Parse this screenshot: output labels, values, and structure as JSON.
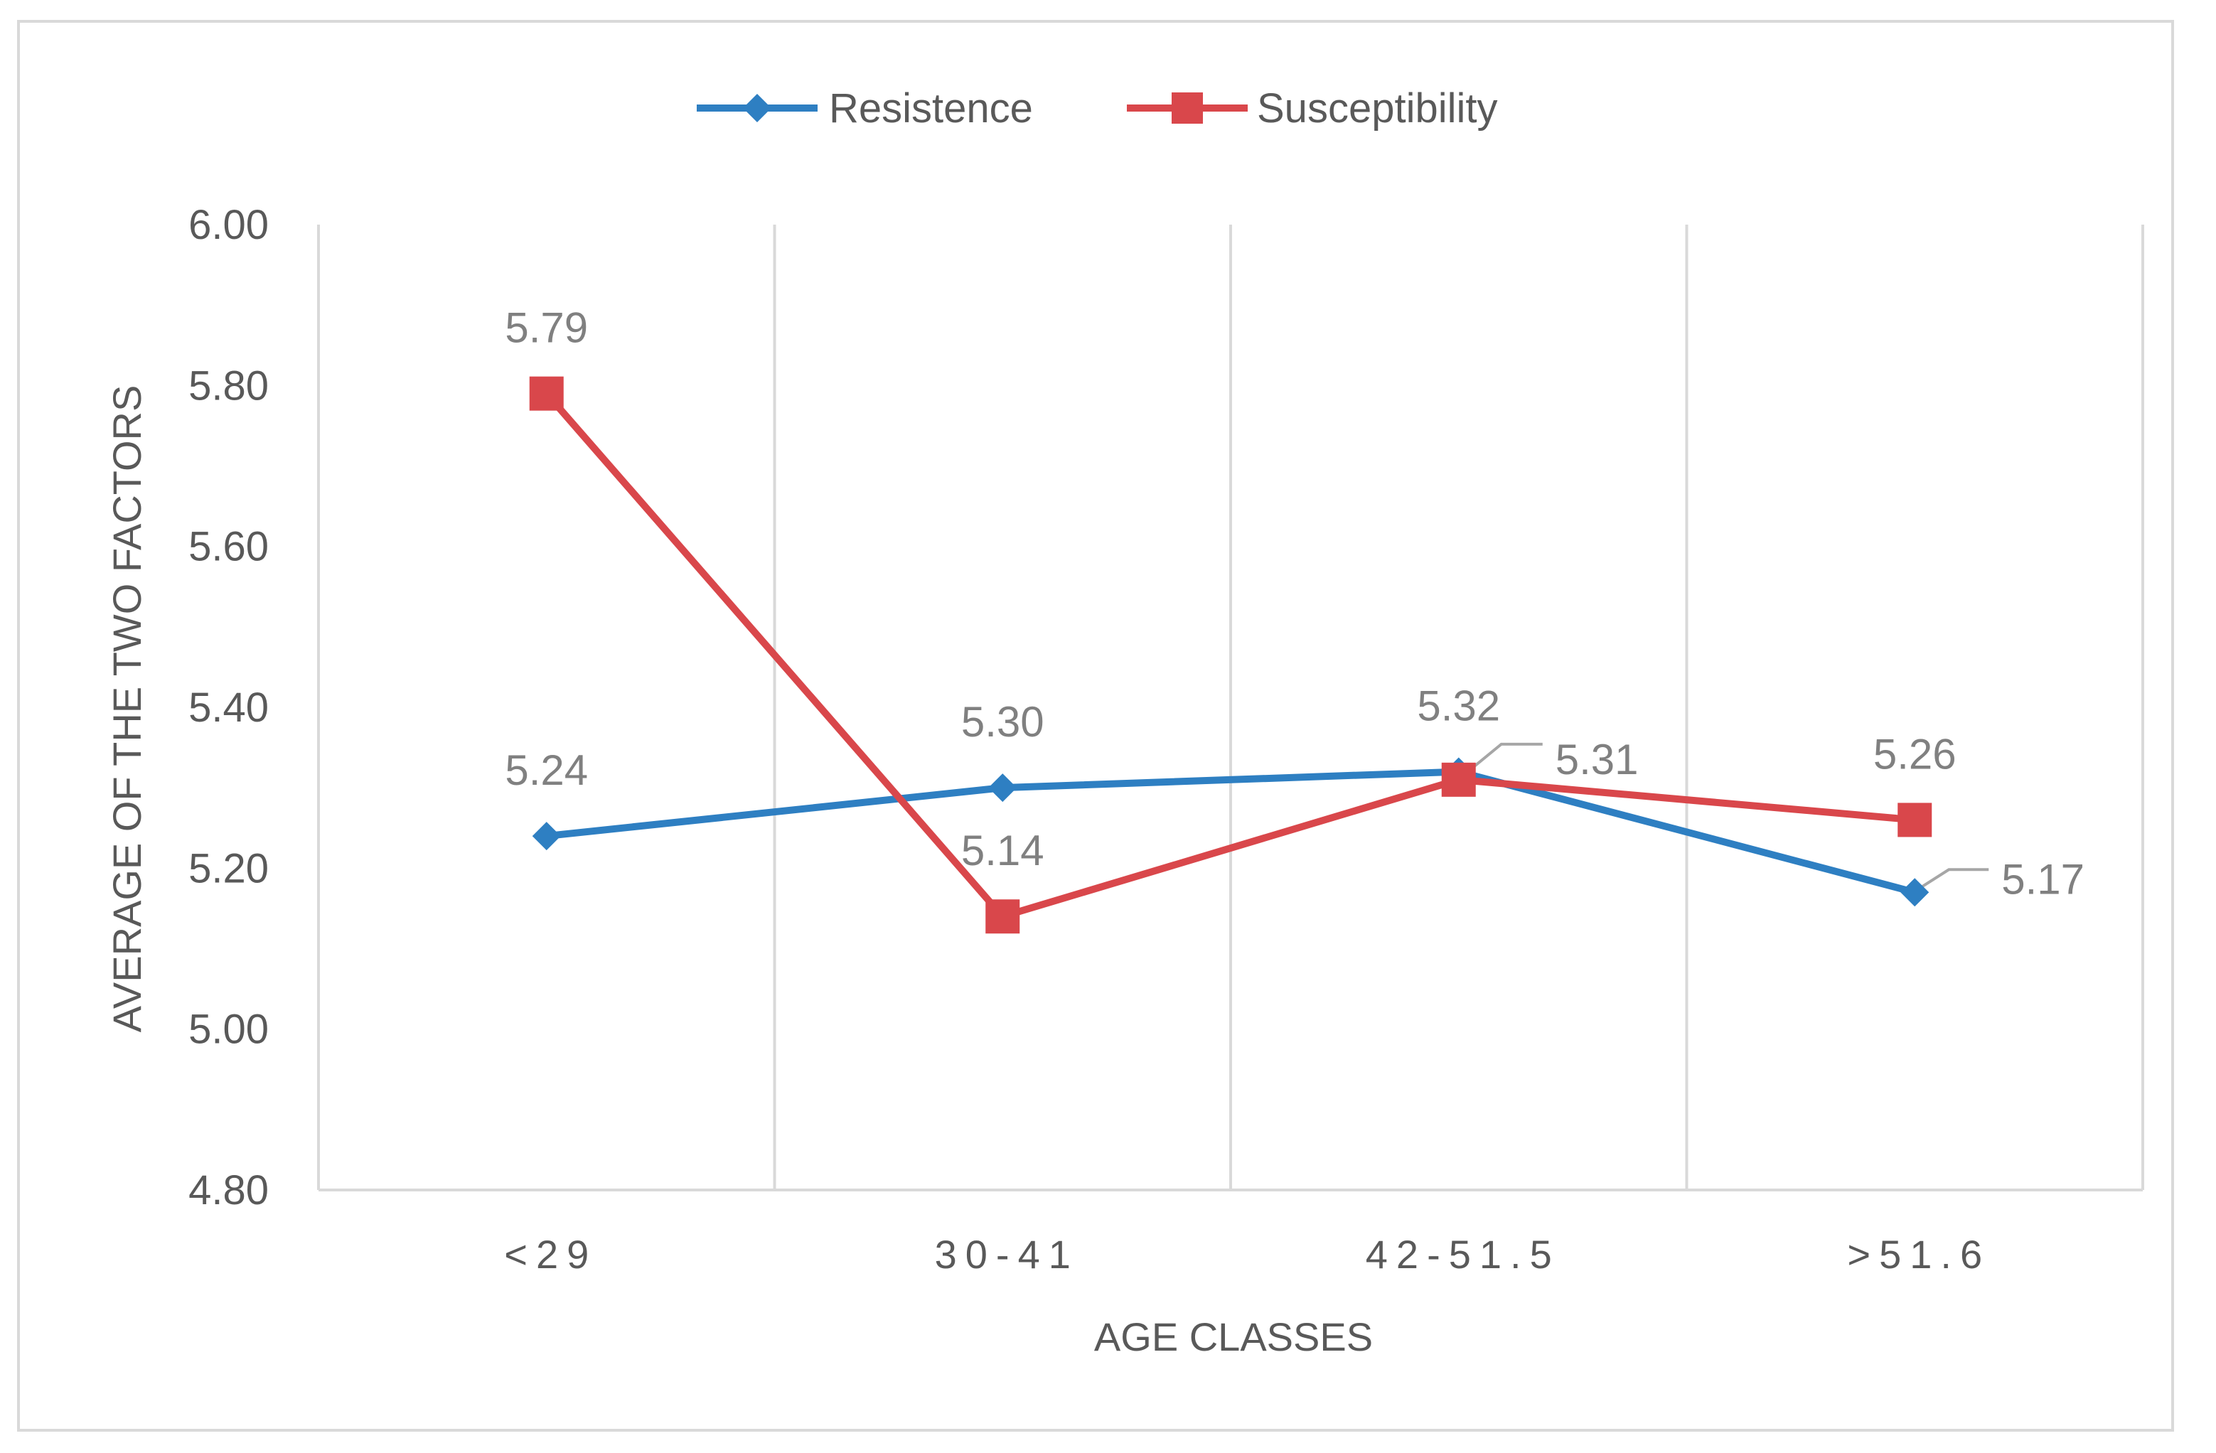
{
  "chart_data": {
    "type": "line",
    "title": "",
    "xlabel": "AGE CLASSES",
    "ylabel": "AVERAGE OF THE TWO FACTORS",
    "categories": [
      "<29",
      "30-41",
      "42-51.5",
      ">51.6"
    ],
    "ylim": [
      4.8,
      6.0
    ],
    "yticks": [
      4.8,
      5.0,
      5.2,
      5.4,
      5.6,
      5.8,
      6.0
    ],
    "ytick_labels": [
      "4.80",
      "5.00",
      "5.20",
      "5.40",
      "5.60",
      "5.80",
      "6.00"
    ],
    "grid": "vertical",
    "legend_position": "top",
    "series": [
      {
        "name": "Resistence",
        "color": "#2e7fc2",
        "marker": "diamond",
        "values": [
          5.24,
          5.3,
          5.32,
          5.17
        ],
        "labels": [
          "5.24",
          "5.30",
          "5.32",
          "5.17"
        ]
      },
      {
        "name": "Susceptibility",
        "color": "#d9474b",
        "marker": "square",
        "values": [
          5.79,
          5.14,
          5.31,
          5.26
        ],
        "labels": [
          "5.79",
          "5.14",
          "5.31",
          "5.26"
        ]
      }
    ]
  }
}
